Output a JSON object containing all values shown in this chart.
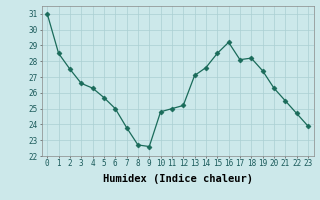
{
  "x": [
    0,
    1,
    2,
    3,
    4,
    5,
    6,
    7,
    8,
    9,
    10,
    11,
    12,
    13,
    14,
    15,
    16,
    17,
    18,
    19,
    20,
    21,
    22,
    23
  ],
  "y": [
    31.0,
    28.5,
    27.5,
    26.6,
    26.3,
    25.7,
    25.0,
    23.8,
    22.7,
    22.6,
    24.8,
    25.0,
    25.2,
    27.1,
    27.6,
    28.5,
    29.2,
    28.1,
    28.2,
    27.4,
    26.3,
    25.5,
    24.7,
    23.9
  ],
  "line_color": "#1a6b5a",
  "marker": "D",
  "marker_size": 2.5,
  "bg_color": "#cce8ea",
  "grid_color": "#aacfd2",
  "xlabel": "Humidex (Indice chaleur)",
  "ylim": [
    22,
    31.5
  ],
  "xlim": [
    -0.5,
    23.5
  ],
  "yticks": [
    22,
    23,
    24,
    25,
    26,
    27,
    28,
    29,
    30,
    31
  ],
  "xticks": [
    0,
    1,
    2,
    3,
    4,
    5,
    6,
    7,
    8,
    9,
    10,
    11,
    12,
    13,
    14,
    15,
    16,
    17,
    18,
    19,
    20,
    21,
    22,
    23
  ],
  "tick_label_fontsize": 5.5,
  "xlabel_fontsize": 7.5
}
